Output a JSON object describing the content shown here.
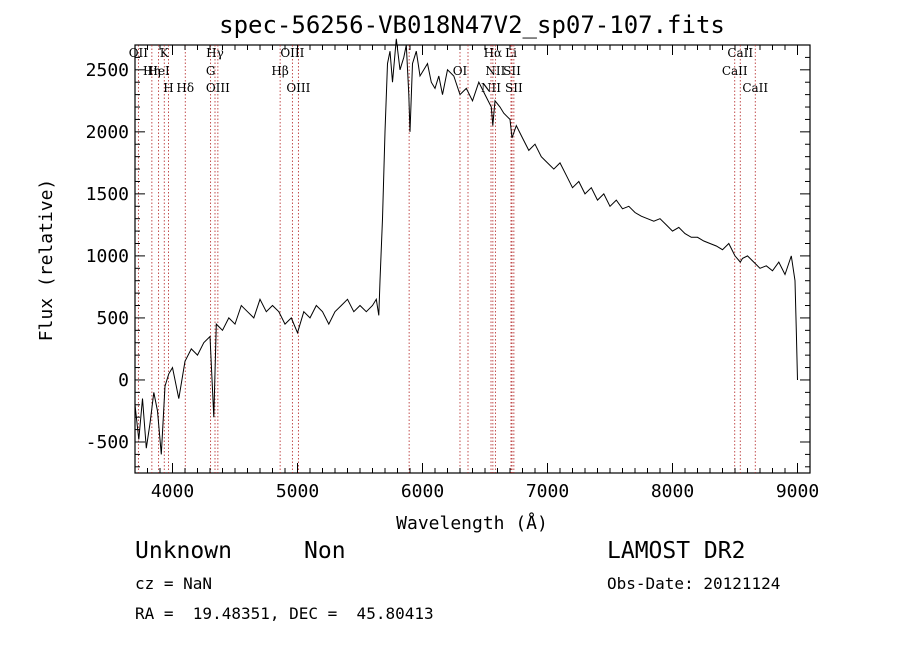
{
  "chart_data": {
    "type": "line",
    "title": "spec-56256-VB018N47V2_sp07-107.fits",
    "xlabel": "Wavelength (Å)",
    "ylabel": "Flux (relative)",
    "xlim": [
      3700,
      9100
    ],
    "ylim": [
      -750,
      2700
    ],
    "x_ticks": [
      4000,
      5000,
      6000,
      7000,
      8000,
      9000
    ],
    "y_ticks": [
      -500,
      0,
      500,
      1000,
      1500,
      2000,
      2500
    ],
    "grid": false,
    "series": [
      {
        "x": [
          3700,
          3730,
          3760,
          3790,
          3820,
          3850,
          3880,
          3910,
          3940,
          3970,
          4000,
          4050,
          4100,
          4150,
          4200,
          4250,
          4300,
          4330,
          4350,
          4400,
          4450,
          4500,
          4550,
          4600,
          4650,
          4700,
          4750,
          4800,
          4850,
          4900,
          4950,
          5000,
          5050,
          5100,
          5150,
          5200,
          5250,
          5300,
          5350,
          5400,
          5450,
          5500,
          5550,
          5600,
          5630,
          5650,
          5660,
          5680,
          5700,
          5720,
          5740,
          5760,
          5790,
          5820,
          5850,
          5870,
          5890,
          5900,
          5920,
          5950,
          5980,
          6010,
          6040,
          6070,
          6100,
          6130,
          6160,
          6200,
          6250,
          6300,
          6350,
          6400,
          6450,
          6500,
          6550,
          6562,
          6580,
          6620,
          6650,
          6700,
          6716,
          6750,
          6800,
          6850,
          6900,
          6950,
          7000,
          7050,
          7100,
          7150,
          7200,
          7250,
          7300,
          7350,
          7400,
          7450,
          7500,
          7550,
          7600,
          7650,
          7700,
          7750,
          7800,
          7850,
          7900,
          7950,
          8000,
          8050,
          8100,
          8150,
          8200,
          8250,
          8300,
          8350,
          8400,
          8450,
          8500,
          8542,
          8560,
          8600,
          8650,
          8700,
          8750,
          8800,
          8850,
          8900,
          8950,
          8980,
          8990,
          9000
        ],
        "y": [
          -200,
          -480,
          -150,
          -550,
          -350,
          -100,
          -250,
          -600,
          -50,
          50,
          100,
          -150,
          150,
          250,
          200,
          300,
          350,
          -300,
          450,
          400,
          500,
          450,
          600,
          550,
          500,
          650,
          550,
          600,
          550,
          450,
          500,
          380,
          550,
          500,
          600,
          550,
          450,
          550,
          600,
          650,
          550,
          600,
          550,
          600,
          650,
          520,
          800,
          1300,
          2000,
          2550,
          2650,
          2400,
          2750,
          2500,
          2600,
          2700,
          2300,
          2000,
          2550,
          2650,
          2450,
          2500,
          2550,
          2400,
          2350,
          2450,
          2300,
          2500,
          2450,
          2300,
          2350,
          2250,
          2400,
          2300,
          2200,
          2050,
          2250,
          2200,
          2150,
          2100,
          1950,
          2050,
          1950,
          1850,
          1900,
          1800,
          1750,
          1700,
          1750,
          1650,
          1550,
          1600,
          1500,
          1550,
          1450,
          1500,
          1400,
          1450,
          1380,
          1400,
          1350,
          1320,
          1300,
          1280,
          1300,
          1250,
          1200,
          1230,
          1180,
          1150,
          1150,
          1120,
          1100,
          1080,
          1050,
          1100,
          1000,
          950,
          980,
          1000,
          950,
          900,
          920,
          880,
          950,
          850,
          1000,
          800,
          400,
          0
        ]
      }
    ],
    "line_markers": [
      {
        "label": "OII",
        "x": 3727
      },
      {
        "label": "Hη",
        "x": 3835
      },
      {
        "label": "H",
        "x": 3968
      },
      {
        "label": "K",
        "x": 3934
      },
      {
        "label": "HeI",
        "x": 3889
      },
      {
        "label": "Hδ",
        "x": 4102
      },
      {
        "label": "Hγ",
        "x": 4340
      },
      {
        "label": "G",
        "x": 4305
      },
      {
        "label": "OIII",
        "x": 4363
      },
      {
        "label": "OIII",
        "x": 4959
      },
      {
        "label": "Hβ",
        "x": 4861
      },
      {
        "label": "OIII",
        "x": 5007
      },
      {
        "label": "",
        "x": 5893
      },
      {
        "label": "OI",
        "x": 6300
      },
      {
        "label": "",
        "x": 6364
      },
      {
        "label": "Hα",
        "x": 6563
      },
      {
        "label": "SII",
        "x": 6716
      },
      {
        "label": "NII",
        "x": 6548
      },
      {
        "label": "Li",
        "x": 6708
      },
      {
        "label": "NII",
        "x": 6583
      },
      {
        "label": "SII",
        "x": 6731
      },
      {
        "label": "CaII",
        "x": 8542
      },
      {
        "label": "CaII",
        "x": 8498
      },
      {
        "label": "CaII",
        "x": 8662
      }
    ]
  },
  "info": {
    "object_class": "Unknown",
    "object_subclass": "Non",
    "survey": "LAMOST DR2",
    "cz": "cz = NaN",
    "obs_date": "Obs-Date: 20121124",
    "radec": "RA =  19.48351, DEC =  45.80413"
  },
  "colors": {
    "spectrum": "#000000",
    "marker_line": "#b22222"
  }
}
